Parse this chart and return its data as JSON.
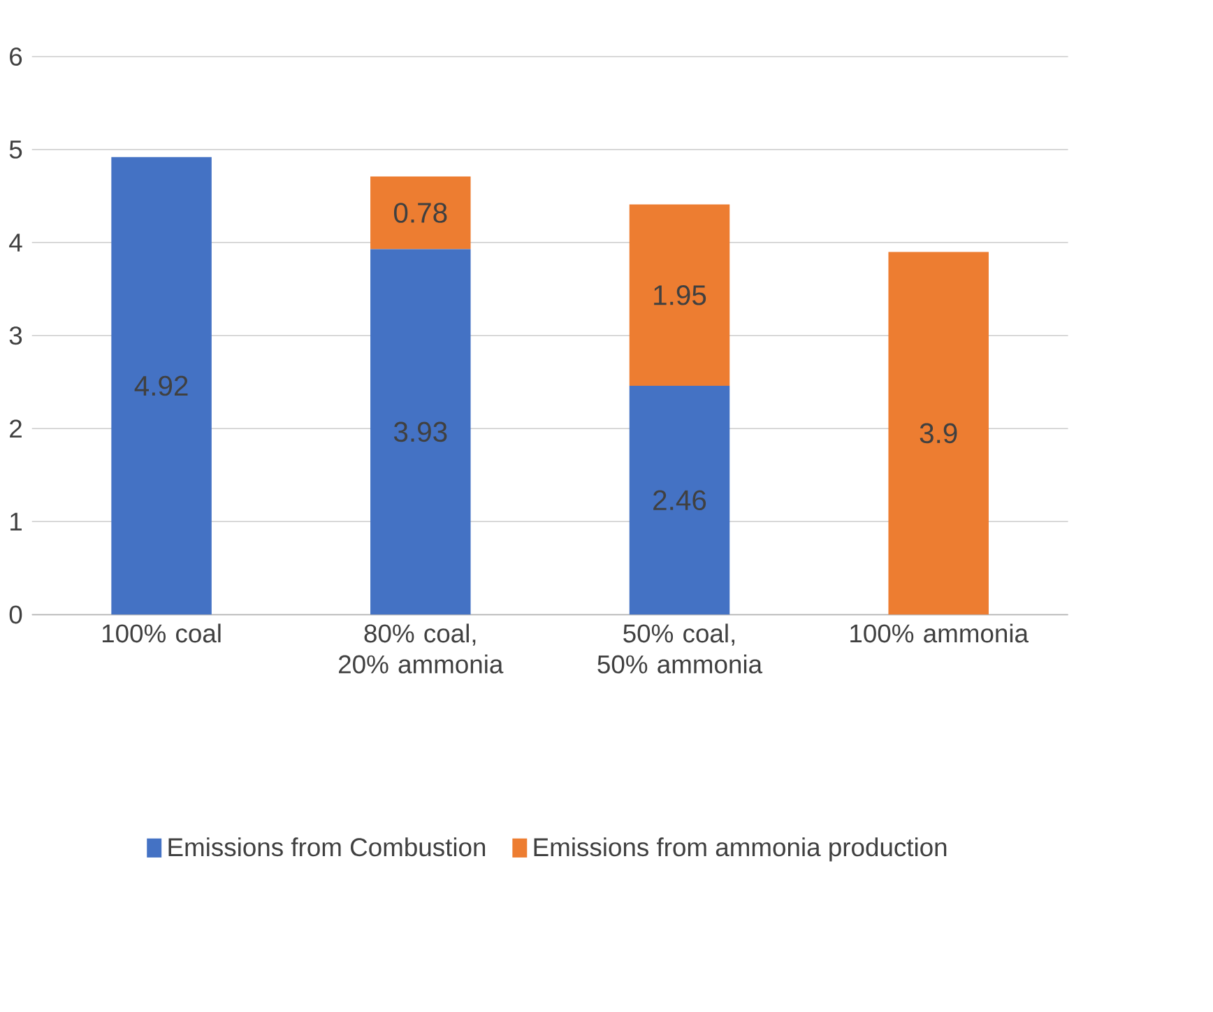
{
  "chart_data": {
    "type": "bar",
    "stacked": true,
    "categories": [
      "100% coal",
      "80% coal, 20% ammonia",
      "50% coal, 50% ammonia",
      "100% ammonia"
    ],
    "series": [
      {
        "name": "Emissions from Combustion",
        "color": "#4472c4",
        "values": [
          4.92,
          3.93,
          2.46,
          null
        ]
      },
      {
        "name": "Emissions from ammonia production",
        "color": "#ed7d31",
        "values": [
          null,
          0.78,
          1.95,
          3.9
        ]
      }
    ],
    "ylim": [
      0,
      6
    ],
    "yticks": [
      0,
      1,
      2,
      3,
      4,
      5,
      6
    ],
    "grid": "y",
    "legend": "bottom",
    "data_labels": true
  }
}
